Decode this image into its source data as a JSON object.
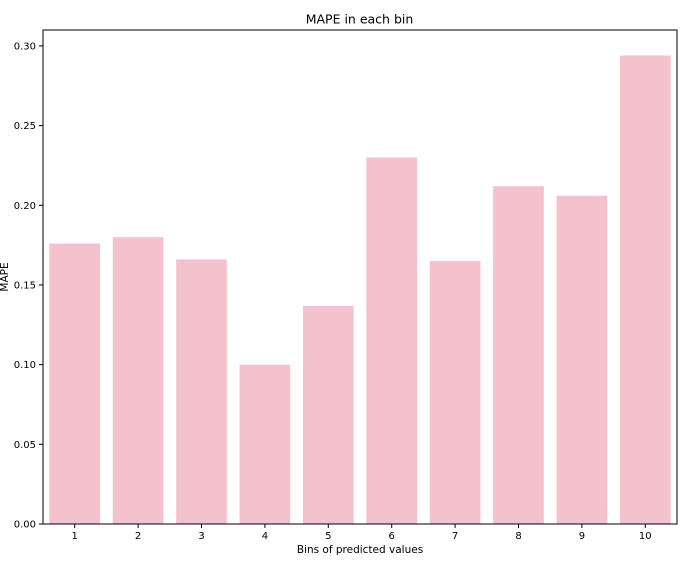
{
  "chart_data": {
    "type": "bar",
    "title": "MAPE in each bin",
    "xlabel": "Bins of predicted values",
    "ylabel": "MAPE",
    "categories": [
      "1",
      "2",
      "3",
      "4",
      "5",
      "6",
      "7",
      "8",
      "9",
      "10"
    ],
    "values": [
      0.176,
      0.18,
      0.166,
      0.1,
      0.137,
      0.23,
      0.165,
      0.212,
      0.206,
      0.294
    ],
    "ylim": [
      0,
      0.31
    ],
    "yticks": [
      "0.00",
      "0.05",
      "0.10",
      "0.15",
      "0.20",
      "0.25",
      "0.30"
    ],
    "bar_color": "#f4c2cd",
    "grid": false,
    "legend": "none"
  }
}
